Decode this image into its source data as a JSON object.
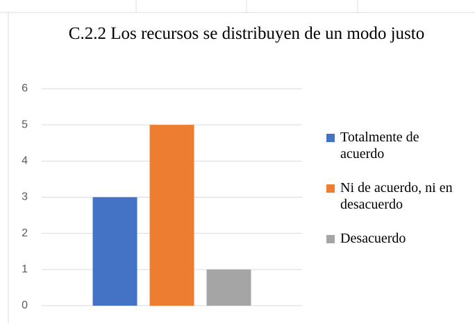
{
  "chart_data": {
    "type": "bar",
    "title": "C.2.2 Los recursos se distribuyen de un modo justo",
    "categories": [
      null
    ],
    "series": [
      {
        "name": "Totalmente de acuerdo",
        "color": "#4472c4",
        "values": [
          3
        ]
      },
      {
        "name": "Ni de acuerdo, ni en desacuerdo",
        "color": "#ed7d31",
        "values": [
          5
        ]
      },
      {
        "name": "Desacuerdo",
        "color": "#a5a5a5",
        "values": [
          1
        ]
      }
    ],
    "ylim": [
      0,
      6
    ],
    "yticks": [
      0,
      1,
      2,
      3,
      4,
      5,
      6
    ],
    "grid": true,
    "legend": "right"
  }
}
